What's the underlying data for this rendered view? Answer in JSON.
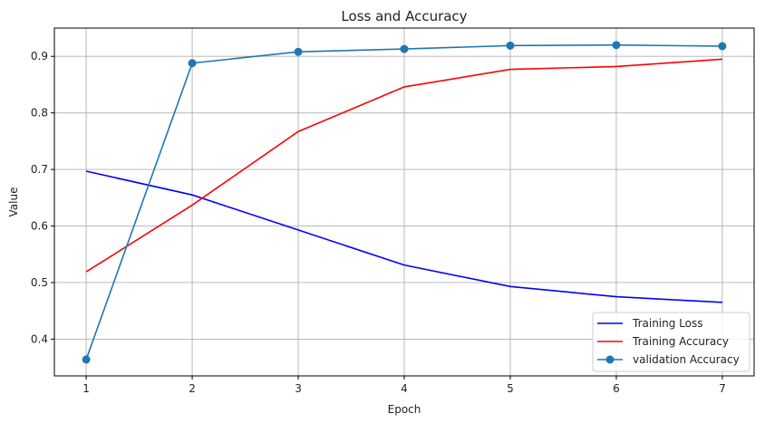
{
  "chart_data": {
    "type": "line",
    "title": "Loss and Accuracy",
    "xlabel": "Epoch",
    "ylabel": "Value",
    "x": [
      1,
      2,
      3,
      4,
      5,
      6,
      7
    ],
    "xlim": [
      0.7,
      7.3
    ],
    "ylim": [
      0.335,
      0.95
    ],
    "xticks": [
      "1",
      "2",
      "3",
      "4",
      "5",
      "6",
      "7"
    ],
    "yticks": [
      "0.4",
      "0.5",
      "0.6",
      "0.7",
      "0.8",
      "0.9"
    ],
    "grid": true,
    "legend_position": "lower-right",
    "series": [
      {
        "name": "Training Loss",
        "color": "#0000ff",
        "marker": "none",
        "values": [
          0.697,
          0.655,
          0.593,
          0.531,
          0.493,
          0.475,
          0.465
        ]
      },
      {
        "name": "Training Accuracy",
        "color": "#ff0000",
        "marker": "none",
        "values": [
          0.519,
          0.637,
          0.767,
          0.846,
          0.877,
          0.882,
          0.895
        ]
      },
      {
        "name": "validation Accuracy",
        "color": "#1f77b4",
        "marker": "circle",
        "values": [
          0.364,
          0.888,
          0.908,
          0.913,
          0.919,
          0.92,
          0.918
        ]
      }
    ]
  }
}
